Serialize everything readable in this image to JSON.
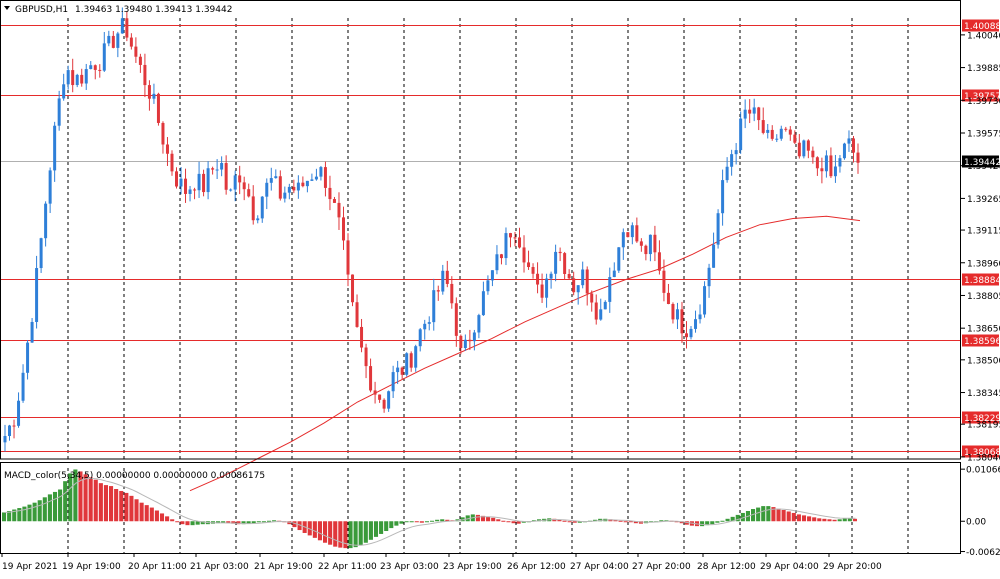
{
  "header": {
    "symbol": "GBPUSD,H1",
    "ohlc": "1.39463 1.39480 1.39413 1.39442"
  },
  "macd_header": "MACD_color(5,34,5) 0.00000000 0.00000000 0.00086175",
  "colors": {
    "bull": "#2e7fd8",
    "bear": "#e0373b",
    "level": "#e52b2b",
    "ma": "#e52b2b",
    "grid": "#000000",
    "macd_up": "#3a9a3a",
    "macd_down": "#e0373b",
    "signal": "#b8b8b8"
  },
  "chart_data": {
    "type": "candlestick",
    "symbol": "GBPUSD",
    "timeframe": "H1",
    "price_axis": [
      "1.40040",
      "1.39885",
      "1.39730",
      "1.39575",
      "1.39420",
      "1.39265",
      "1.39115",
      "1.38960",
      "1.38805",
      "1.38650",
      "1.38500",
      "1.38345",
      "1.38195",
      "1.38040"
    ],
    "price_range": [
      1.3803,
      1.4012
    ],
    "current_price": "1.39442",
    "horizontal_levels": [
      "1.40088",
      "1.39757",
      "1.38884",
      "1.38596",
      "1.38229",
      "1.38068"
    ],
    "time_labels": [
      "19 Apr 2021",
      "19 Apr 19:00",
      "20 Apr 11:00",
      "21 Apr 03:00",
      "21 Apr 19:00",
      "22 Apr 11:00",
      "23 Apr 03:00",
      "23 Apr 19:00",
      "26 Apr 12:00",
      "27 Apr 04:00",
      "27 Apr 20:00",
      "28 Apr 12:00",
      "29 Apr 04:00",
      "29 Apr 20:00"
    ],
    "close_path": [
      1.3814,
      1.3822,
      1.3842,
      1.3868,
      1.39,
      1.3935,
      1.3965,
      1.399,
      1.3982,
      1.3985,
      1.399,
      1.3992,
      1.3998,
      1.4005,
      1.4008,
      1.3995,
      1.3985,
      1.3975,
      1.396,
      1.3945,
      1.3935,
      1.393,
      1.3935,
      1.3932,
      1.394,
      1.3945,
      1.3925,
      1.394,
      1.3932,
      1.3918,
      1.393,
      1.3935,
      1.3928,
      1.3932,
      1.393,
      1.3935,
      1.394,
      1.3938,
      1.3925,
      1.391,
      1.388,
      1.386,
      1.3845,
      1.3835,
      1.383,
      1.3842,
      1.3845,
      1.385,
      1.3862,
      1.387,
      1.388,
      1.389,
      1.3875,
      1.385,
      1.3862,
      1.3875,
      1.3885,
      1.3895,
      1.3905,
      1.3915,
      1.3905,
      1.389,
      1.388,
      1.389,
      1.3905,
      1.3895,
      1.3885,
      1.389,
      1.3882,
      1.387,
      1.3888,
      1.39,
      1.3915,
      1.391,
      1.39,
      1.3905,
      1.389,
      1.3878,
      1.387,
      1.3865,
      1.387,
      1.388,
      1.39,
      1.3925,
      1.3945,
      1.3955,
      1.3968,
      1.3965,
      1.3958,
      1.395,
      1.396,
      1.3955,
      1.3945,
      1.395,
      1.394,
      1.3945,
      1.3935,
      1.3948,
      1.3952,
      1.3944
    ],
    "ma_path": [
      1.3788,
      1.3795,
      1.3803,
      1.3811,
      1.382,
      1.383,
      1.3838,
      1.3846,
      1.3853,
      1.386,
      1.3868,
      1.3875,
      1.3882,
      1.3888,
      1.3893,
      1.39,
      1.3908,
      1.3914,
      1.3917,
      1.3918,
      1.3916
    ],
    "macd_axis": [
      "0.010663",
      "0.00",
      "-0.00620"
    ],
    "macd_range": [
      -0.0065,
      0.0109
    ],
    "macd_values": [
      0.0018,
      0.0021,
      0.0024,
      0.0027,
      0.003,
      0.0034,
      0.0038,
      0.0043,
      0.0049,
      0.0055,
      0.006,
      0.0065,
      0.0082,
      0.0098,
      0.0106,
      0.0102,
      0.0096,
      0.009,
      0.0085,
      0.0078,
      0.0074,
      0.0072,
      0.0066,
      0.0062,
      0.0058,
      0.0052,
      0.0045,
      0.0038,
      0.0033,
      0.0028,
      0.0022,
      0.0016,
      0.001,
      0.0004,
      -0.0002,
      -0.0006,
      -0.0008,
      -0.0008,
      -0.0007,
      -0.0006,
      -0.0006,
      -0.0005,
      -0.0004,
      -0.0003,
      -0.0004,
      -0.0005,
      -0.0006,
      -0.0006,
      -0.0005,
      -0.0004,
      -0.0002,
      -0.0001,
      0.0001,
      0.0002,
      0.0001,
      -0.0001,
      -0.0006,
      -0.0012,
      -0.0018,
      -0.0024,
      -0.0029,
      -0.0034,
      -0.0039,
      -0.0044,
      -0.0048,
      -0.0052,
      -0.0054,
      -0.0055,
      -0.0055,
      -0.0053,
      -0.0049,
      -0.0044,
      -0.0038,
      -0.0032,
      -0.0026,
      -0.002,
      -0.0014,
      -0.0009,
      -0.0005,
      -0.0002,
      -0.0001,
      -0.0002,
      -0.0003,
      -0.0002,
      0.0001,
      0.0003,
      0.0004,
      0.0003,
      0.0002,
      0.0004,
      0.0008,
      0.0012,
      0.0014,
      0.0013,
      0.0011,
      0.0009,
      0.0007,
      0.0004,
      0.0001,
      -0.0002,
      -0.0004,
      -0.0005,
      -0.0003,
      -0.0001,
      0.0002,
      0.0004,
      0.0005,
      0.0006,
      0.0005,
      0.0003,
      0.0001,
      -0.0001,
      -0.0003,
      -0.0003,
      -0.0002,
      0.0001,
      0.0003,
      0.0005,
      0.0005,
      0.0004,
      0.0002,
      0.0001,
      0.0,
      -0.0002,
      -0.0004,
      -0.0005,
      -0.0004,
      -0.0002,
      0.0,
      0.0002,
      0.0002,
      0.0001,
      -0.0001,
      -0.0004,
      -0.0007,
      -0.0009,
      -0.001,
      -0.001,
      -0.0008,
      -0.0006,
      -0.0003,
      0.0001,
      0.0005,
      0.0009,
      0.0013,
      0.0017,
      0.0021,
      0.0025,
      0.0028,
      0.0031,
      0.0031,
      0.0029,
      0.0026,
      0.0023,
      0.002,
      0.0017,
      0.0014,
      0.0012,
      0.001,
      0.0008,
      0.0006,
      0.0005,
      0.0004,
      0.0003,
      0.0004,
      0.0006,
      0.0006,
      0.0005
    ]
  }
}
